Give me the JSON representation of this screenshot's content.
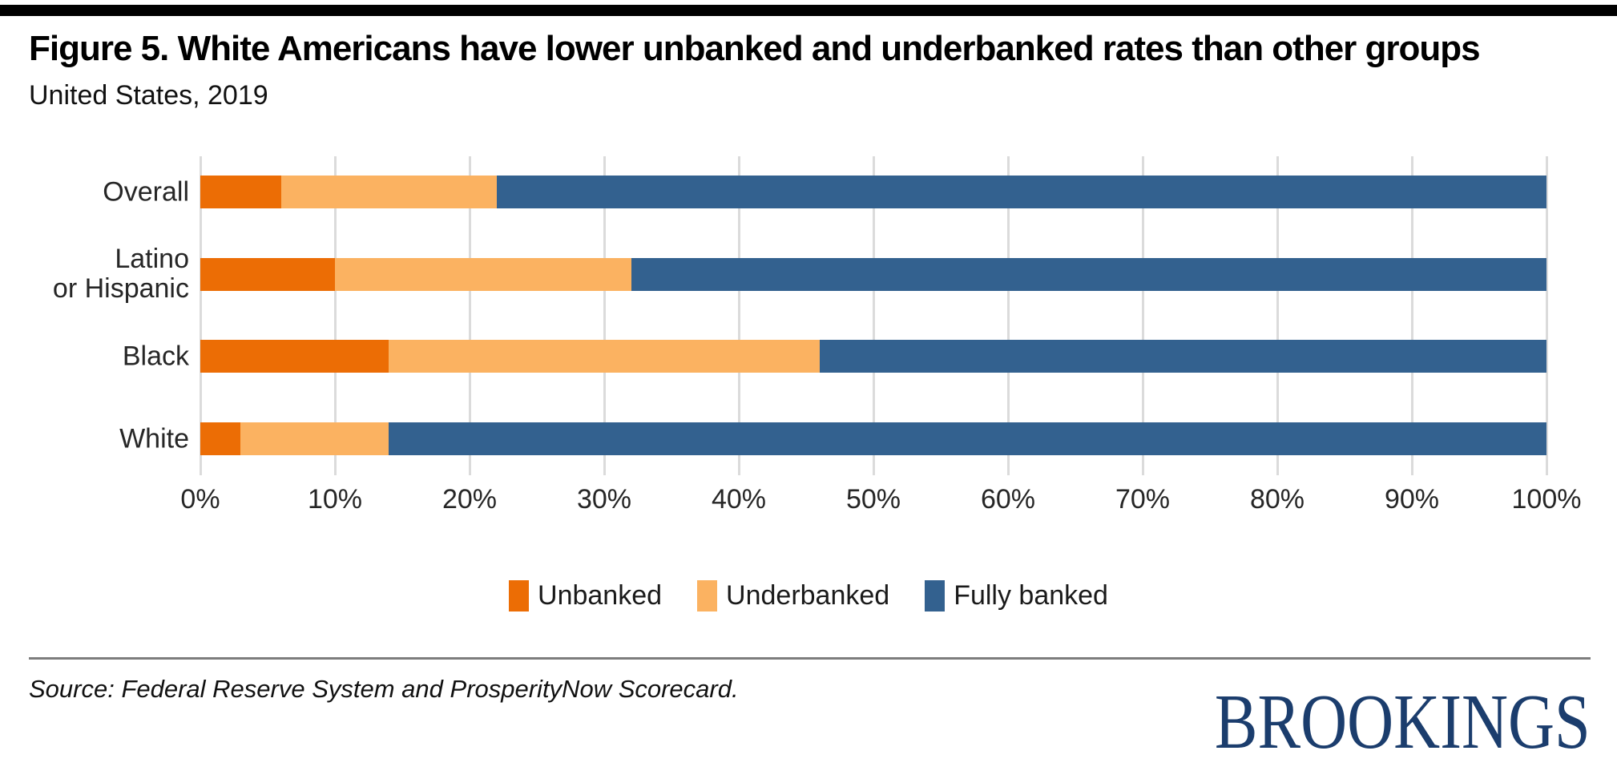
{
  "header": {
    "title": "Figure 5. White Americans have lower unbanked and underbanked rates than other groups",
    "subtitle": "United States, 2019"
  },
  "chart_data": {
    "type": "bar",
    "orientation": "horizontal",
    "stacked": true,
    "stacked_to_100_percent": true,
    "categories": [
      "Overall",
      "Latino\nor Hispanic",
      "Black",
      "White"
    ],
    "series": [
      {
        "name": "Unbanked",
        "color": "#EC6D05",
        "values": [
          6,
          10,
          14,
          3
        ]
      },
      {
        "name": "Underbanked",
        "color": "#FBB261",
        "values": [
          16,
          22,
          32,
          11
        ]
      },
      {
        "name": "Fully banked",
        "color": "#33618F",
        "values": [
          78,
          68,
          54,
          86
        ]
      }
    ],
    "xlim": [
      0,
      100
    ],
    "x_tick_step": 10,
    "x_tick_labels": [
      "0%",
      "10%",
      "20%",
      "30%",
      "40%",
      "50%",
      "60%",
      "70%",
      "80%",
      "90%",
      "100%"
    ],
    "grid": "vertical",
    "legend_position": "bottom-center"
  },
  "footer": {
    "source": "Source: Federal Reserve System and ProsperityNow Scorecard.",
    "logo": "BROOKINGS"
  },
  "colors": {
    "top_bar": "#000000",
    "gridline": "#DBDBDB",
    "divider": "#7D7D7D",
    "logo_navy": "#1B3D6D",
    "text": "#262626"
  }
}
